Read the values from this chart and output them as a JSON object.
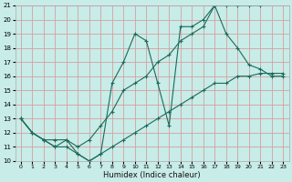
{
  "xlabel": "Humidex (Indice chaleur)",
  "bg_color": "#c8ece8",
  "grid_color": "#d4a0a0",
  "line_color": "#1a6b5a",
  "xlim": [
    -0.5,
    23.5
  ],
  "ylim": [
    10,
    21
  ],
  "xticks": [
    0,
    1,
    2,
    3,
    4,
    5,
    6,
    7,
    8,
    9,
    10,
    11,
    12,
    13,
    14,
    15,
    16,
    17,
    18,
    19,
    20,
    21,
    22,
    23
  ],
  "yticks": [
    10,
    11,
    12,
    13,
    14,
    15,
    16,
    17,
    18,
    19,
    20,
    21
  ],
  "line1_x": [
    0,
    1,
    2,
    3,
    4,
    5,
    6,
    7,
    8,
    9,
    10,
    11,
    12,
    13,
    14,
    15,
    16,
    17,
    18,
    19,
    20,
    21
  ],
  "line1_y": [
    13,
    12,
    11.5,
    11,
    11.5,
    10.5,
    10,
    10.5,
    15.5,
    17.0,
    19.0,
    18.5,
    15.5,
    12.5,
    19.5,
    19.5,
    20.0,
    21.0,
    21.0,
    21.0,
    21.0,
    21.0
  ],
  "line2_x": [
    0,
    1,
    2,
    3,
    4,
    5,
    6,
    7,
    8,
    9,
    10,
    11,
    12,
    13,
    14,
    15,
    16,
    17,
    18,
    19,
    20,
    21,
    22,
    23
  ],
  "line2_y": [
    13,
    12,
    11.5,
    11.5,
    11.5,
    11.0,
    11.5,
    12.5,
    13.5,
    15.0,
    15.5,
    16.0,
    17.0,
    17.5,
    18.5,
    19.0,
    19.5,
    21.0,
    19.0,
    18.0,
    16.8,
    16.5,
    16.0,
    16.0
  ],
  "line3_x": [
    0,
    1,
    2,
    3,
    4,
    5,
    6,
    7,
    8,
    9,
    10,
    11,
    12,
    13,
    14,
    15,
    16,
    17,
    18,
    19,
    20,
    21,
    22,
    23
  ],
  "line3_y": [
    13,
    12,
    11.5,
    11.0,
    11.0,
    10.5,
    10.0,
    10.5,
    11.0,
    11.5,
    12.0,
    12.5,
    13.0,
    13.5,
    14.0,
    14.5,
    15.0,
    15.5,
    15.5,
    16.0,
    16.0,
    16.2,
    16.2,
    16.2
  ]
}
